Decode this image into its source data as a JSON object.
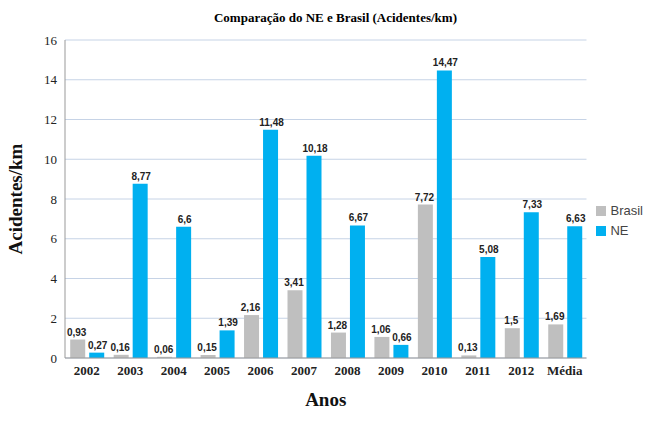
{
  "chart_data": {
    "type": "bar",
    "title": "Comparação do NE e Brasil (Acidentes/km)",
    "x_label": "Anos",
    "y_label": "Acidentes/km",
    "categories": [
      "2002",
      "2003",
      "2004",
      "2005",
      "2006",
      "2007",
      "2008",
      "2009",
      "2010",
      "2011",
      "2012",
      "Média"
    ],
    "series": [
      {
        "name": "Brasil",
        "color": "#bfbfbf",
        "values": [
          0.93,
          0.16,
          0.06,
          0.15,
          2.16,
          3.41,
          1.28,
          1.06,
          7.72,
          0.13,
          1.5,
          1.69
        ],
        "value_labels": [
          "0,93",
          "0,16",
          "0,06",
          "0,15",
          "2,16",
          "3,41",
          "1,28",
          "1,06",
          "7,72",
          "0,13",
          "1,5",
          "1,69"
        ]
      },
      {
        "name": "NE",
        "color": "#00b0f0",
        "values": [
          0.27,
          8.77,
          6.6,
          1.39,
          11.48,
          10.18,
          6.67,
          0.66,
          14.47,
          5.08,
          7.33,
          6.63
        ],
        "value_labels": [
          "0,27",
          "8,77",
          "6,6",
          "1,39",
          "11,48",
          "10,18",
          "6,67",
          "0,66",
          "14,47",
          "5,08",
          "7,33",
          "6,63"
        ]
      }
    ],
    "ylim": [
      0,
      16
    ],
    "yticks": [
      0,
      2,
      4,
      6,
      8,
      10,
      12,
      14,
      16
    ],
    "grid": true,
    "legend": "right",
    "data_labels": true
  }
}
